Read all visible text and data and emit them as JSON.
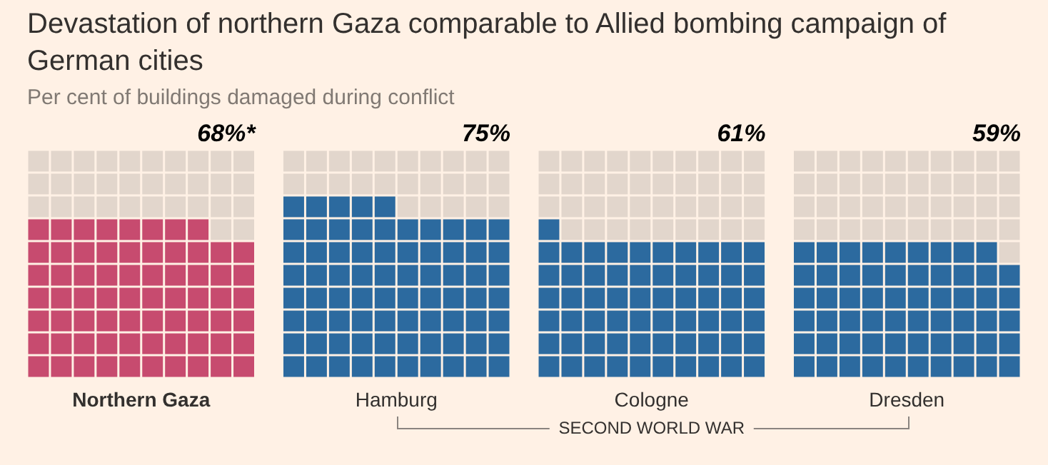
{
  "chart_data": {
    "type": "other",
    "title": "Devastation of northern Gaza comparable to Allied bombing campaign of German cities",
    "subtitle": "Per cent of buildings damaged during conflict",
    "categories": [
      "Northern Gaza",
      "Hamburg",
      "Cologne",
      "Dresden"
    ],
    "values": [
      68,
      75,
      61,
      59
    ],
    "value_labels": [
      "68%*",
      "75%",
      "61%",
      "59%"
    ],
    "colors": [
      "#c74b6f",
      "#2c6a9f",
      "#2c6a9f",
      "#2c6a9f"
    ],
    "annotations": [
      "SECOND WORLD WAR"
    ]
  }
}
